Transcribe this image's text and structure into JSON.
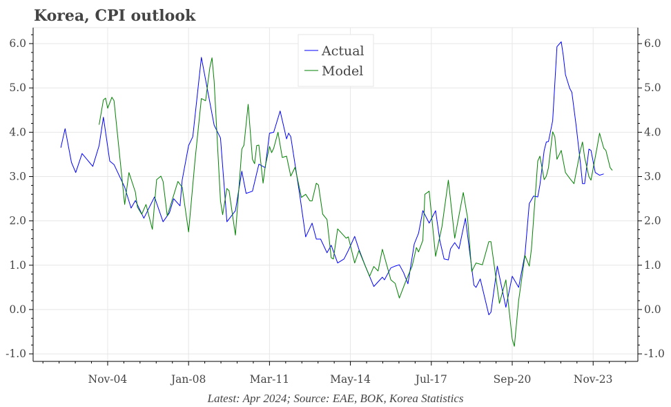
{
  "chart_data": {
    "type": "line",
    "title": "Korea, CPI outlook",
    "footnote": "Latest: Apr 2024; Source: EAE, BOK, Korea Statistics",
    "xlabel": "",
    "ylabel": "",
    "x_ticks": [
      "Nov-04",
      "Jan-08",
      "Mar-11",
      "May-14",
      "Jul-17",
      "Sep-20",
      "Nov-23"
    ],
    "x_tick_dates": [
      "2004-11",
      "2008-01",
      "2011-03",
      "2014-05",
      "2017-07",
      "2020-09",
      "2023-11"
    ],
    "xlim": [
      "2001-12",
      "2025-08"
    ],
    "y_ticks": [
      "-1.0",
      "0.0",
      "1.0",
      "2.0",
      "3.0",
      "4.0",
      "5.0",
      "6.0"
    ],
    "ylim": [
      -1.17,
      6.36
    ],
    "y_axis_both_sides": true,
    "grid": true,
    "legend": {
      "placement": "top-center",
      "entries": [
        "Actual",
        "Model"
      ]
    },
    "series": [
      {
        "name": "Actual",
        "color": "#0000ff",
        "points": [
          [
            "2003-01",
            3.65
          ],
          [
            "2003-03",
            4.08
          ],
          [
            "2003-06",
            3.32
          ],
          [
            "2003-08",
            3.09
          ],
          [
            "2003-11",
            3.52
          ],
          [
            "2004-04",
            3.23
          ],
          [
            "2004-07",
            3.7
          ],
          [
            "2004-09",
            4.34
          ],
          [
            "2004-12",
            3.35
          ],
          [
            "2005-02",
            3.27
          ],
          [
            "2005-07",
            2.76
          ],
          [
            "2005-10",
            2.29
          ],
          [
            "2005-12",
            2.46
          ],
          [
            "2006-04",
            2.06
          ],
          [
            "2006-09",
            2.54
          ],
          [
            "2007-01",
            1.98
          ],
          [
            "2007-04",
            2.18
          ],
          [
            "2007-06",
            2.5
          ],
          [
            "2007-09",
            2.34
          ],
          [
            "2007-10",
            2.92
          ],
          [
            "2008-01",
            3.7
          ],
          [
            "2008-03",
            3.9
          ],
          [
            "2008-07",
            5.69
          ],
          [
            "2009-01",
            4.16
          ],
          [
            "2009-04",
            3.87
          ],
          [
            "2009-07",
            1.98
          ],
          [
            "2009-11",
            2.23
          ],
          [
            "2010-02",
            3.12
          ],
          [
            "2010-04",
            2.62
          ],
          [
            "2010-07",
            2.67
          ],
          [
            "2010-10",
            3.28
          ],
          [
            "2011-01",
            3.2
          ],
          [
            "2011-03",
            3.98
          ],
          [
            "2011-05",
            4.0
          ],
          [
            "2011-08",
            4.48
          ],
          [
            "2011-11",
            3.85
          ],
          [
            "2011-12",
            3.98
          ],
          [
            "2012-01",
            3.9
          ],
          [
            "2012-05",
            2.65
          ],
          [
            "2012-08",
            1.64
          ],
          [
            "2012-11",
            1.95
          ],
          [
            "2013-01",
            1.59
          ],
          [
            "2013-03",
            1.59
          ],
          [
            "2013-06",
            1.28
          ],
          [
            "2013-08",
            1.45
          ],
          [
            "2013-11",
            1.05
          ],
          [
            "2014-02",
            1.14
          ],
          [
            "2014-04",
            1.33
          ],
          [
            "2014-07",
            1.65
          ],
          [
            "2014-09",
            1.36
          ],
          [
            "2014-12",
            0.98
          ],
          [
            "2015-04",
            0.52
          ],
          [
            "2015-08",
            0.73
          ],
          [
            "2015-09",
            0.67
          ],
          [
            "2015-12",
            0.94
          ],
          [
            "2016-02",
            0.98
          ],
          [
            "2016-04",
            1.01
          ],
          [
            "2016-06",
            0.83
          ],
          [
            "2016-08",
            0.58
          ],
          [
            "2016-11",
            1.48
          ],
          [
            "2017-01",
            1.72
          ],
          [
            "2017-03",
            2.23
          ],
          [
            "2017-06",
            1.95
          ],
          [
            "2017-09",
            2.23
          ],
          [
            "2017-11",
            1.56
          ],
          [
            "2018-01",
            1.14
          ],
          [
            "2018-03",
            1.12
          ],
          [
            "2018-04",
            1.37
          ],
          [
            "2018-06",
            1.51
          ],
          [
            "2018-08",
            1.37
          ],
          [
            "2018-11",
            2.06
          ],
          [
            "2019-03",
            0.55
          ],
          [
            "2019-04",
            0.5
          ],
          [
            "2019-06",
            0.69
          ],
          [
            "2019-10",
            -0.12
          ],
          [
            "2019-11",
            -0.06
          ],
          [
            "2020-02",
            0.98
          ],
          [
            "2020-06",
            0.05
          ],
          [
            "2020-09",
            0.75
          ],
          [
            "2020-12",
            0.5
          ],
          [
            "2021-03",
            1.25
          ],
          [
            "2021-05",
            2.39
          ],
          [
            "2021-07",
            2.56
          ],
          [
            "2021-09",
            2.54
          ],
          [
            "2021-10",
            2.81
          ],
          [
            "2021-12",
            3.59
          ],
          [
            "2022-01",
            3.78
          ],
          [
            "2022-02",
            3.79
          ],
          [
            "2022-04",
            4.26
          ],
          [
            "2022-06",
            5.93
          ],
          [
            "2022-08",
            6.04
          ],
          [
            "2022-09",
            5.73
          ],
          [
            "2022-10",
            5.3
          ],
          [
            "2022-12",
            4.99
          ],
          [
            "2023-01",
            4.9
          ],
          [
            "2023-03",
            4.16
          ],
          [
            "2023-05",
            3.32
          ],
          [
            "2023-06",
            2.84
          ],
          [
            "2023-07",
            2.84
          ],
          [
            "2023-09",
            3.62
          ],
          [
            "2023-10",
            3.59
          ],
          [
            "2023-12",
            3.09
          ],
          [
            "2024-02",
            3.03
          ],
          [
            "2024-04",
            3.06
          ]
        ]
      },
      {
        "name": "Model",
        "color": "#008000",
        "points": [
          [
            "2004-07",
            4.17
          ],
          [
            "2004-09",
            4.73
          ],
          [
            "2004-10",
            4.77
          ],
          [
            "2004-11",
            4.54
          ],
          [
            "2005-01",
            4.79
          ],
          [
            "2005-02",
            4.71
          ],
          [
            "2005-07",
            2.37
          ],
          [
            "2005-09",
            3.09
          ],
          [
            "2005-12",
            2.65
          ],
          [
            "2006-01",
            2.31
          ],
          [
            "2006-03",
            2.15
          ],
          [
            "2006-05",
            2.37
          ],
          [
            "2006-08",
            1.81
          ],
          [
            "2006-10",
            2.93
          ],
          [
            "2006-12",
            3.01
          ],
          [
            "2007-01",
            2.89
          ],
          [
            "2007-03",
            2.11
          ],
          [
            "2007-08",
            2.89
          ],
          [
            "2007-10",
            2.76
          ],
          [
            "2008-01",
            1.75
          ],
          [
            "2008-04",
            3.35
          ],
          [
            "2008-07",
            4.76
          ],
          [
            "2008-09",
            4.71
          ],
          [
            "2008-11",
            5.46
          ],
          [
            "2008-12",
            5.68
          ],
          [
            "2009-01",
            5.15
          ],
          [
            "2009-04",
            2.45
          ],
          [
            "2009-05",
            2.14
          ],
          [
            "2009-07",
            2.73
          ],
          [
            "2009-08",
            2.68
          ],
          [
            "2009-11",
            1.68
          ],
          [
            "2010-02",
            3.62
          ],
          [
            "2010-03",
            3.71
          ],
          [
            "2010-05",
            4.63
          ],
          [
            "2010-07",
            3.39
          ],
          [
            "2010-08",
            3.29
          ],
          [
            "2010-09",
            3.7
          ],
          [
            "2010-10",
            3.71
          ],
          [
            "2010-12",
            2.85
          ],
          [
            "2011-01",
            3.23
          ],
          [
            "2011-03",
            3.68
          ],
          [
            "2011-04",
            3.54
          ],
          [
            "2011-05",
            3.64
          ],
          [
            "2011-07",
            4.0
          ],
          [
            "2011-09",
            3.43
          ],
          [
            "2011-11",
            3.46
          ],
          [
            "2012-01",
            3.01
          ],
          [
            "2012-03",
            3.21
          ],
          [
            "2012-06",
            2.53
          ],
          [
            "2012-08",
            2.6
          ],
          [
            "2012-10",
            2.45
          ],
          [
            "2012-11",
            2.45
          ],
          [
            "2013-01",
            2.85
          ],
          [
            "2013-02",
            2.81
          ],
          [
            "2013-04",
            2.15
          ],
          [
            "2013-06",
            2.03
          ],
          [
            "2013-08",
            1.17
          ],
          [
            "2013-09",
            1.14
          ],
          [
            "2013-11",
            1.82
          ],
          [
            "2014-03",
            1.61
          ],
          [
            "2014-04",
            1.64
          ],
          [
            "2014-07",
            1.05
          ],
          [
            "2014-09",
            1.33
          ],
          [
            "2014-12",
            0.98
          ],
          [
            "2015-02",
            0.75
          ],
          [
            "2015-04",
            0.97
          ],
          [
            "2015-06",
            0.87
          ],
          [
            "2015-08",
            1.36
          ],
          [
            "2015-12",
            0.67
          ],
          [
            "2016-02",
            0.59
          ],
          [
            "2016-04",
            0.26
          ],
          [
            "2016-07",
            0.64
          ],
          [
            "2016-10",
            0.98
          ],
          [
            "2016-12",
            1.4
          ],
          [
            "2017-01",
            1.3
          ],
          [
            "2017-03",
            1.56
          ],
          [
            "2017-04",
            2.6
          ],
          [
            "2017-06",
            2.67
          ],
          [
            "2017-09",
            1.2
          ],
          [
            "2017-12",
            1.87
          ],
          [
            "2018-03",
            2.92
          ],
          [
            "2018-06",
            1.61
          ],
          [
            "2018-10",
            2.64
          ],
          [
            "2018-12",
            2.08
          ],
          [
            "2019-02",
            0.86
          ],
          [
            "2019-04",
            1.05
          ],
          [
            "2019-07",
            1.01
          ],
          [
            "2019-10",
            1.53
          ],
          [
            "2019-11",
            1.53
          ],
          [
            "2020-03",
            0.14
          ],
          [
            "2020-06",
            0.67
          ],
          [
            "2020-09",
            -0.67
          ],
          [
            "2020-10",
            -0.83
          ],
          [
            "2020-12",
            0.2
          ],
          [
            "2021-03",
            1.22
          ],
          [
            "2021-05",
            0.98
          ],
          [
            "2021-06",
            1.36
          ],
          [
            "2021-09",
            3.35
          ],
          [
            "2021-10",
            3.46
          ],
          [
            "2021-12",
            2.93
          ],
          [
            "2022-01",
            3.01
          ],
          [
            "2022-02",
            3.2
          ],
          [
            "2022-04",
            4.01
          ],
          [
            "2022-05",
            3.9
          ],
          [
            "2022-06",
            3.39
          ],
          [
            "2022-08",
            3.59
          ],
          [
            "2022-10",
            3.09
          ],
          [
            "2022-12",
            2.96
          ],
          [
            "2023-02",
            2.84
          ],
          [
            "2023-05",
            3.59
          ],
          [
            "2023-06",
            3.78
          ],
          [
            "2023-07",
            3.43
          ],
          [
            "2023-09",
            3.0
          ],
          [
            "2023-10",
            2.92
          ],
          [
            "2024-01",
            3.7
          ],
          [
            "2024-02",
            3.98
          ],
          [
            "2024-04",
            3.64
          ],
          [
            "2024-05",
            3.59
          ],
          [
            "2024-07",
            3.2
          ],
          [
            "2024-08",
            3.14
          ]
        ]
      }
    ]
  }
}
